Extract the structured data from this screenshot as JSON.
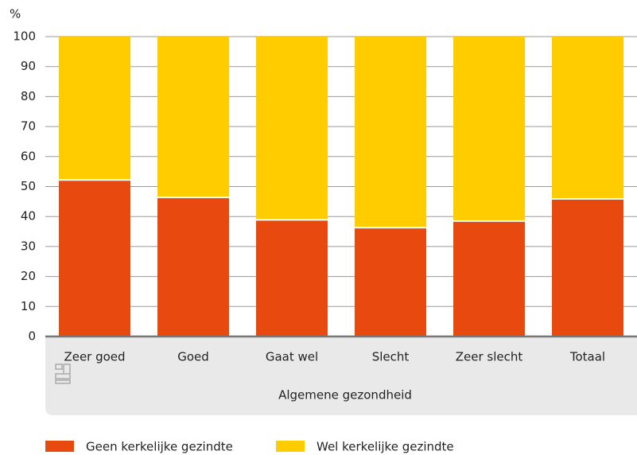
{
  "chart_data": {
    "type": "stacked_bar",
    "y_label": "%",
    "x_label": "Algemene gezondheid",
    "categories": [
      "Zeer goed",
      "Goed",
      "Gaat wel",
      "Slecht",
      "Zeer slecht",
      "Totaal"
    ],
    "series": [
      {
        "name": "Geen kerkelijke gezindte",
        "color": "#e8490f",
        "values": [
          52.2,
          46.4,
          38.9,
          36.3,
          38.5,
          45.9
        ]
      },
      {
        "name": "Wel kerkelijke gezindte",
        "color": "#ffcc00",
        "values": [
          47.8,
          53.6,
          61.1,
          63.7,
          61.5,
          54.1
        ]
      }
    ],
    "ylim": [
      0,
      100
    ],
    "yticks": [
      0,
      10,
      20,
      30,
      40,
      50,
      60,
      70,
      80,
      90,
      100
    ],
    "grid": true
  }
}
